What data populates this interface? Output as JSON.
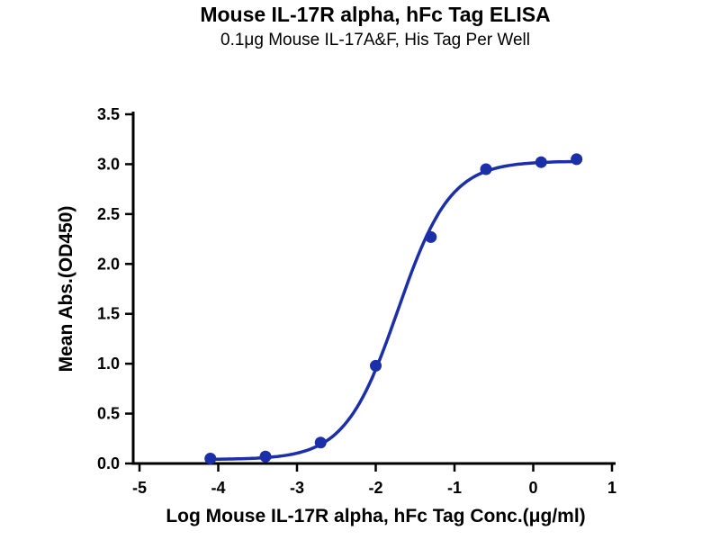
{
  "header": {
    "title": "Mouse IL-17R alpha, hFc Tag ELISA",
    "subtitle": "0.1μg Mouse IL-17A&F, His Tag Per Well"
  },
  "chart_data": {
    "type": "scatter",
    "title": "Mouse IL-17R alpha, hFc Tag ELISA",
    "subtitle": "0.1μg Mouse IL-17A&F, His Tag Per Well",
    "xlabel": "Log Mouse IL-17R alpha, hFc Tag Conc.(μg/ml)",
    "ylabel": "Mean Abs.(OD450)",
    "xlim": [
      -5,
      1
    ],
    "ylim": [
      0,
      3.5
    ],
    "xticks": [
      -5,
      -4,
      -3,
      -2,
      -1,
      0,
      1
    ],
    "yticks": [
      0.0,
      0.5,
      1.0,
      1.5,
      2.0,
      2.5,
      3.0,
      3.5
    ],
    "grid": false,
    "legend_position": "none",
    "points": [
      {
        "x": -4.1,
        "y": 0.05
      },
      {
        "x": -3.4,
        "y": 0.07
      },
      {
        "x": -2.7,
        "y": 0.21
      },
      {
        "x": -2.0,
        "y": 0.98
      },
      {
        "x": -1.3,
        "y": 2.27
      },
      {
        "x": -0.6,
        "y": 2.95
      },
      {
        "x": 0.1,
        "y": 3.02
      },
      {
        "x": 0.55,
        "y": 3.05
      }
    ],
    "fit_4pl": {
      "bottom": 0.04,
      "top": 3.03,
      "logec50": -1.72,
      "hillslope": 1.3
    },
    "curve_color": "#1b2fa8",
    "point_color": "#1b2fa8",
    "axis_color": "#000000"
  }
}
